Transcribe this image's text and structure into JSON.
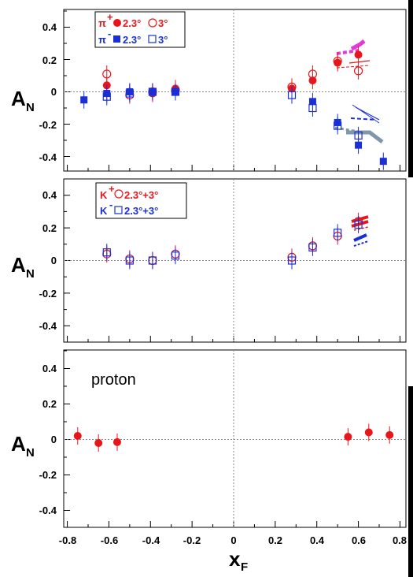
{
  "chart_data": [
    {
      "type": "scatter",
      "panel": "pion",
      "ylabel": "A",
      "ylabel_sub": "N",
      "xlim": [
        -0.88,
        0.88
      ],
      "ylim": [
        -0.5,
        0.5
      ],
      "yticks": [
        "0.4",
        "0.2",
        "0",
        "-0.2",
        "-0.4"
      ],
      "legend": {
        "line1": {
          "particle": "π",
          "charge": "+",
          "a": "2.3°",
          "b": "3°",
          "color": "#e8161b"
        },
        "line2": {
          "particle": "π",
          "charge": "-",
          "a": "2.3°",
          "b": "3°",
          "color": "#1a2fd6"
        }
      },
      "series": [
        {
          "name": "π+ 2.3°",
          "marker": "filled-circle",
          "color": "#e8161b",
          "points": [
            {
              "x": -0.61,
              "y": 0.04
            },
            {
              "x": -0.5,
              "y": 0.0
            },
            {
              "x": -0.39,
              "y": -0.01
            },
            {
              "x": -0.28,
              "y": 0.02
            },
            {
              "x": 0.28,
              "y": 0.02
            },
            {
              "x": 0.38,
              "y": 0.07
            },
            {
              "x": 0.5,
              "y": 0.18
            },
            {
              "x": 0.6,
              "y": 0.23
            }
          ]
        },
        {
          "name": "π+ 3°",
          "marker": "open-circle",
          "color": "#e8161b",
          "points": [
            {
              "x": -0.61,
              "y": 0.11
            },
            {
              "x": -0.5,
              "y": -0.02
            },
            {
              "x": -0.39,
              "y": 0.0
            },
            {
              "x": -0.28,
              "y": 0.01
            },
            {
              "x": 0.28,
              "y": 0.03
            },
            {
              "x": 0.38,
              "y": 0.11
            },
            {
              "x": 0.5,
              "y": 0.19
            },
            {
              "x": 0.6,
              "y": 0.13
            }
          ]
        },
        {
          "name": "π- 2.3°",
          "marker": "filled-square",
          "color": "#1a2fd6",
          "points": [
            {
              "x": -0.72,
              "y": -0.05
            },
            {
              "x": -0.61,
              "y": -0.01
            },
            {
              "x": -0.5,
              "y": 0.0
            },
            {
              "x": -0.39,
              "y": 0.0
            },
            {
              "x": -0.28,
              "y": 0.0
            },
            {
              "x": 0.38,
              "y": -0.06
            },
            {
              "x": 0.5,
              "y": -0.19
            },
            {
              "x": 0.6,
              "y": -0.33
            },
            {
              "x": 0.72,
              "y": -0.43
            }
          ]
        },
        {
          "name": "π- 3°",
          "marker": "open-square",
          "color": "#1a2fd6",
          "points": [
            {
              "x": -0.61,
              "y": -0.03
            },
            {
              "x": -0.5,
              "y": -0.01
            },
            {
              "x": -0.39,
              "y": 0.0
            },
            {
              "x": -0.28,
              "y": 0.0
            },
            {
              "x": 0.28,
              "y": -0.02
            },
            {
              "x": 0.38,
              "y": -0.1
            },
            {
              "x": 0.5,
              "y": -0.21
            },
            {
              "x": 0.6,
              "y": -0.27
            }
          ]
        }
      ]
    },
    {
      "type": "scatter",
      "panel": "kaon",
      "ylabel": "A",
      "ylabel_sub": "N",
      "xlim": [
        -0.88,
        0.88
      ],
      "ylim": [
        -0.5,
        0.5
      ],
      "yticks": [
        "0.4",
        "0.2",
        "0",
        "-0.2",
        "-0.4"
      ],
      "legend": {
        "line1": {
          "particle": "K",
          "charge": "+",
          "a": "2.3°+3°",
          "color": "#e8161b"
        },
        "line2": {
          "particle": "K",
          "charge": "-",
          "a": "2.3°+3°",
          "color": "#1a2fd6"
        }
      },
      "series": [
        {
          "name": "K+ 2.3°+3°",
          "marker": "open-circle",
          "color": "#e8161b",
          "points": [
            {
              "x": -0.61,
              "y": 0.04
            },
            {
              "x": -0.5,
              "y": 0.01
            },
            {
              "x": -0.39,
              "y": 0.0
            },
            {
              "x": -0.28,
              "y": 0.04
            },
            {
              "x": 0.28,
              "y": 0.02
            },
            {
              "x": 0.38,
              "y": 0.09
            },
            {
              "x": 0.5,
              "y": 0.15
            },
            {
              "x": 0.6,
              "y": 0.24
            }
          ]
        },
        {
          "name": "K- 2.3°+3°",
          "marker": "open-square",
          "color": "#1a2fd6",
          "points": [
            {
              "x": -0.61,
              "y": 0.05
            },
            {
              "x": -0.5,
              "y": 0.0
            },
            {
              "x": -0.39,
              "y": 0.0
            },
            {
              "x": -0.28,
              "y": 0.03
            },
            {
              "x": 0.28,
              "y": 0.0
            },
            {
              "x": 0.38,
              "y": 0.08
            },
            {
              "x": 0.5,
              "y": 0.17
            },
            {
              "x": 0.6,
              "y": 0.22
            }
          ]
        }
      ]
    },
    {
      "type": "scatter",
      "panel": "proton",
      "ylabel": "A",
      "ylabel_sub": "N",
      "xlabel": "x",
      "xlabel_sub": "F",
      "xlim": [
        -0.88,
        0.88
      ],
      "ylim": [
        -0.5,
        0.5
      ],
      "yticks": [
        "0.4",
        "0.2",
        "0",
        "-0.2",
        "-0.4"
      ],
      "xticks": [
        "-0.8",
        "-0.6",
        "-0.4",
        "-0.2",
        "0",
        "0.2",
        "0.4",
        "0.6",
        "0.8"
      ],
      "annotation": "proton",
      "series": [
        {
          "name": "proton",
          "marker": "filled-circle",
          "color": "#e8161b",
          "points": [
            {
              "x": -0.75,
              "y": 0.02
            },
            {
              "x": -0.65,
              "y": -0.02
            },
            {
              "x": -0.56,
              "y": -0.015
            },
            {
              "x": 0.55,
              "y": 0.015
            },
            {
              "x": 0.65,
              "y": 0.04
            },
            {
              "x": 0.75,
              "y": 0.025
            }
          ]
        }
      ]
    }
  ]
}
